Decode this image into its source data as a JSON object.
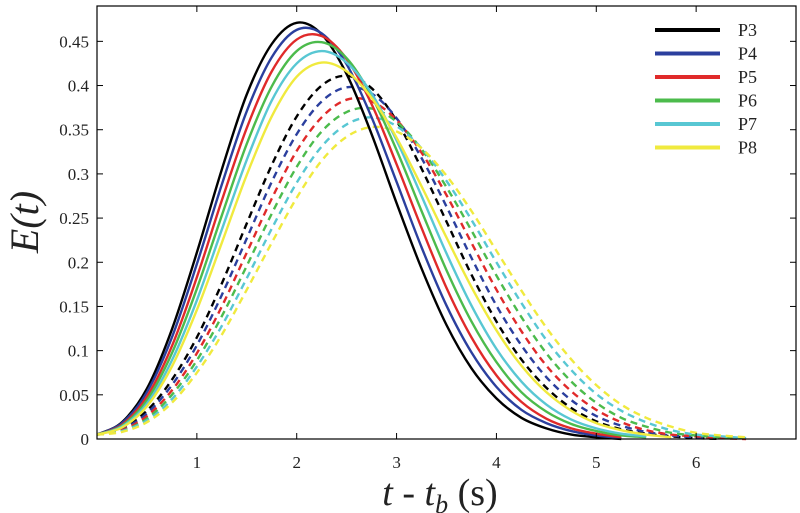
{
  "chart_data": {
    "type": "line",
    "xlabel": {
      "main": "t - t",
      "sub": "b",
      "tail": " (s)"
    },
    "ylabel": "E(t)",
    "xlim": [
      0,
      7
    ],
    "ylim": [
      0,
      0.49
    ],
    "x_ticks": [
      {
        "value": 1,
        "label": "1"
      },
      {
        "value": 2,
        "label": "2"
      },
      {
        "value": 3,
        "label": "3"
      },
      {
        "value": 4,
        "label": "4"
      },
      {
        "value": 5,
        "label": "5"
      },
      {
        "value": 6,
        "label": "6"
      }
    ],
    "y_ticks": [
      {
        "value": 0,
        "label": "0"
      },
      {
        "value": 0.05,
        "label": "0.05"
      },
      {
        "value": 0.1,
        "label": "0.1"
      },
      {
        "value": 0.15,
        "label": "0.15"
      },
      {
        "value": 0.2,
        "label": "0.2"
      },
      {
        "value": 0.25,
        "label": "0.25"
      },
      {
        "value": 0.3,
        "label": "0.3"
      },
      {
        "value": 0.35,
        "label": "0.35"
      },
      {
        "value": 0.4,
        "label": "0.4"
      },
      {
        "value": 0.45,
        "label": "0.45"
      }
    ],
    "grid": false,
    "legend_position": "top-right",
    "series": [
      {
        "name": "P3",
        "color": "#000000",
        "style": "solid",
        "x": [
          0,
          0.25,
          0.5,
          0.75,
          1,
          1.25,
          1.5,
          1.75,
          2,
          2.25,
          2.5,
          2.75,
          3,
          3.25,
          3.5,
          3.75,
          4,
          4.25,
          4.5,
          4.75,
          5,
          5.25
        ],
        "y": [
          0.005,
          0.019,
          0.057,
          0.124,
          0.211,
          0.305,
          0.39,
          0.447,
          0.471,
          0.458,
          0.413,
          0.345,
          0.267,
          0.193,
          0.129,
          0.08,
          0.046,
          0.024,
          0.012,
          0.005,
          0.002,
          0.0
        ]
      },
      {
        "name": "P4",
        "color": "#2b3f9e",
        "style": "solid",
        "x": [
          0,
          0.25,
          0.5,
          0.75,
          1,
          1.25,
          1.5,
          1.75,
          2,
          2.25,
          2.5,
          2.75,
          3,
          3.25,
          3.5,
          3.75,
          4,
          4.25,
          4.5,
          4.75,
          5,
          5.25
        ],
        "y": [
          0.005,
          0.018,
          0.053,
          0.115,
          0.198,
          0.288,
          0.371,
          0.432,
          0.463,
          0.459,
          0.424,
          0.364,
          0.291,
          0.217,
          0.151,
          0.098,
          0.059,
          0.033,
          0.018,
          0.009,
          0.004,
          0.001
        ]
      },
      {
        "name": "P5",
        "color": "#e02a2a",
        "style": "solid",
        "x": [
          0,
          0.25,
          0.5,
          0.75,
          1,
          1.25,
          1.5,
          1.75,
          2,
          2.25,
          2.5,
          2.75,
          3,
          3.25,
          3.5,
          3.75,
          4,
          4.25,
          4.5,
          4.75,
          5,
          5.25
        ],
        "y": [
          0.005,
          0.016,
          0.048,
          0.105,
          0.183,
          0.27,
          0.352,
          0.416,
          0.452,
          0.456,
          0.43,
          0.379,
          0.311,
          0.239,
          0.171,
          0.115,
          0.072,
          0.042,
          0.023,
          0.012,
          0.006,
          0.002
        ]
      },
      {
        "name": "P6",
        "color": "#4cbb4c",
        "style": "solid",
        "x": [
          0,
          0.25,
          0.5,
          0.75,
          1,
          1.25,
          1.5,
          1.75,
          2,
          2.25,
          2.5,
          2.75,
          3,
          3.25,
          3.5,
          3.75,
          4,
          4.25,
          4.5,
          4.75,
          5,
          5.25,
          5.5
        ],
        "y": [
          0.005,
          0.015,
          0.044,
          0.097,
          0.17,
          0.253,
          0.334,
          0.399,
          0.439,
          0.449,
          0.431,
          0.388,
          0.327,
          0.258,
          0.191,
          0.133,
          0.087,
          0.053,
          0.031,
          0.017,
          0.009,
          0.004,
          0.002
        ]
      },
      {
        "name": "P7",
        "color": "#58c7d3",
        "style": "solid",
        "x": [
          0,
          0.25,
          0.5,
          0.75,
          1,
          1.25,
          1.5,
          1.75,
          2,
          2.25,
          2.5,
          2.75,
          3,
          3.25,
          3.5,
          3.75,
          4,
          4.25,
          4.5,
          4.75,
          5,
          5.25,
          5.5
        ],
        "y": [
          0.005,
          0.014,
          0.04,
          0.089,
          0.157,
          0.237,
          0.316,
          0.383,
          0.425,
          0.439,
          0.426,
          0.391,
          0.338,
          0.275,
          0.21,
          0.151,
          0.102,
          0.065,
          0.039,
          0.022,
          0.012,
          0.006,
          0.003
        ]
      },
      {
        "name": "P8",
        "color": "#f0ea3e",
        "style": "solid",
        "x": [
          0,
          0.25,
          0.5,
          0.75,
          1,
          1.25,
          1.5,
          1.75,
          2,
          2.25,
          2.5,
          2.75,
          3,
          3.25,
          3.5,
          3.75,
          4,
          4.25,
          4.5,
          4.75,
          5,
          5.25,
          5.5,
          5.75
        ],
        "y": [
          0.005,
          0.013,
          0.037,
          0.082,
          0.146,
          0.222,
          0.299,
          0.365,
          0.41,
          0.426,
          0.416,
          0.386,
          0.341,
          0.286,
          0.228,
          0.172,
          0.123,
          0.083,
          0.053,
          0.032,
          0.018,
          0.01,
          0.005,
          0.002
        ]
      },
      {
        "name": "",
        "color": "#000000",
        "style": "dashed",
        "x": [
          0,
          0.25,
          0.5,
          0.75,
          1,
          1.25,
          1.5,
          1.75,
          2,
          2.25,
          2.5,
          2.75,
          3,
          3.25,
          3.5,
          3.75,
          4,
          4.25,
          4.5,
          4.75,
          5,
          5.25,
          5.5,
          5.75,
          6,
          6.25
        ],
        "y": [
          0.005,
          0.012,
          0.032,
          0.067,
          0.115,
          0.176,
          0.244,
          0.31,
          0.365,
          0.4,
          0.411,
          0.397,
          0.36,
          0.306,
          0.246,
          0.186,
          0.133,
          0.09,
          0.058,
          0.035,
          0.02,
          0.011,
          0.006,
          0.003,
          0.001,
          0.0
        ]
      },
      {
        "name": "",
        "color": "#2b3f9e",
        "style": "dashed",
        "x": [
          0,
          0.25,
          0.5,
          0.75,
          1,
          1.25,
          1.5,
          1.75,
          2,
          2.25,
          2.5,
          2.75,
          3,
          3.25,
          3.5,
          3.75,
          4,
          4.25,
          4.5,
          4.75,
          5,
          5.25,
          5.5,
          5.75,
          6,
          6.25
        ],
        "y": [
          0.005,
          0.011,
          0.029,
          0.061,
          0.106,
          0.163,
          0.227,
          0.291,
          0.345,
          0.382,
          0.398,
          0.391,
          0.363,
          0.318,
          0.263,
          0.205,
          0.151,
          0.106,
          0.07,
          0.044,
          0.026,
          0.015,
          0.008,
          0.004,
          0.002,
          0.001
        ]
      },
      {
        "name": "",
        "color": "#e02a2a",
        "style": "dashed",
        "x": [
          0,
          0.25,
          0.5,
          0.75,
          1,
          1.25,
          1.5,
          1.75,
          2,
          2.25,
          2.5,
          2.75,
          3,
          3.25,
          3.5,
          3.75,
          4,
          4.25,
          4.5,
          4.75,
          5,
          5.25,
          5.5,
          5.75,
          6,
          6.25,
          6.5
        ],
        "y": [
          0.005,
          0.01,
          0.026,
          0.055,
          0.097,
          0.15,
          0.211,
          0.272,
          0.326,
          0.364,
          0.384,
          0.382,
          0.361,
          0.324,
          0.276,
          0.222,
          0.169,
          0.122,
          0.083,
          0.054,
          0.033,
          0.019,
          0.01,
          0.005,
          0.003,
          0.001,
          0.0
        ]
      },
      {
        "name": "",
        "color": "#4cbb4c",
        "style": "dashed",
        "x": [
          0,
          0.25,
          0.5,
          0.75,
          1,
          1.25,
          1.5,
          1.75,
          2,
          2.25,
          2.5,
          2.75,
          3,
          3.25,
          3.5,
          3.75,
          4,
          4.25,
          4.5,
          4.75,
          5,
          5.25,
          5.5,
          5.75,
          6,
          6.25,
          6.5
        ],
        "y": [
          0.005,
          0.009,
          0.023,
          0.05,
          0.089,
          0.139,
          0.196,
          0.255,
          0.308,
          0.348,
          0.37,
          0.374,
          0.359,
          0.328,
          0.285,
          0.236,
          0.185,
          0.138,
          0.097,
          0.065,
          0.041,
          0.024,
          0.014,
          0.007,
          0.004,
          0.002,
          0.001
        ]
      },
      {
        "name": "",
        "color": "#58c7d3",
        "style": "dashed",
        "x": [
          0,
          0.25,
          0.5,
          0.75,
          1,
          1.25,
          1.5,
          1.75,
          2,
          2.25,
          2.5,
          2.75,
          3,
          3.25,
          3.5,
          3.75,
          4,
          4.25,
          4.5,
          4.75,
          5,
          5.25,
          5.5,
          5.75,
          6,
          6.25,
          6.5
        ],
        "y": [
          0.005,
          0.009,
          0.021,
          0.045,
          0.082,
          0.128,
          0.182,
          0.238,
          0.29,
          0.331,
          0.356,
          0.364,
          0.354,
          0.329,
          0.292,
          0.248,
          0.2,
          0.154,
          0.112,
          0.078,
          0.051,
          0.032,
          0.019,
          0.01,
          0.005,
          0.003,
          0.001
        ]
      },
      {
        "name": "",
        "color": "#f0ea3e",
        "style": "dashed",
        "x": [
          0,
          0.25,
          0.5,
          0.75,
          1,
          1.25,
          1.5,
          1.75,
          2,
          2.25,
          2.5,
          2.75,
          3,
          3.25,
          3.5,
          3.75,
          4,
          4.25,
          4.5,
          4.75,
          5,
          5.25,
          5.5,
          5.75,
          6,
          6.25,
          6.5
        ],
        "y": [
          0.005,
          0.008,
          0.019,
          0.041,
          0.075,
          0.118,
          0.169,
          0.222,
          0.273,
          0.315,
          0.342,
          0.353,
          0.348,
          0.329,
          0.298,
          0.258,
          0.213,
          0.168,
          0.126,
          0.09,
          0.061,
          0.039,
          0.024,
          0.014,
          0.007,
          0.004,
          0.002
        ]
      }
    ]
  }
}
